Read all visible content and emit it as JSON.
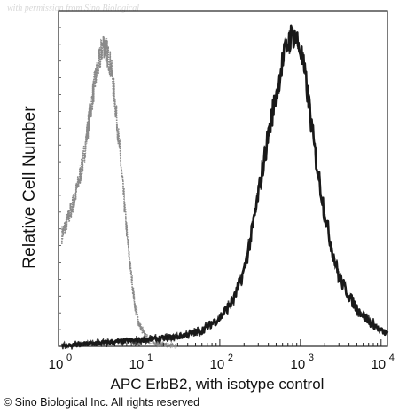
{
  "watermark": "with permission from Sino Biological",
  "copyright": "© Sino Biological Inc. All rights reserved",
  "chart_data": {
    "type": "area",
    "title": "",
    "xlabel": "APC ErbB2, with isotype control",
    "ylabel": "Relative Cell Number",
    "xscale": "log",
    "xlim": [
      1,
      12000
    ],
    "ylim": [
      0,
      1
    ],
    "grid": false,
    "legend": "none",
    "x_ticks": [
      {
        "value": 1,
        "base": "10",
        "exp": "0"
      },
      {
        "value": 10,
        "base": "10",
        "exp": "1"
      },
      {
        "value": 100,
        "base": "10",
        "exp": "2"
      },
      {
        "value": 1000,
        "base": "10",
        "exp": "3"
      },
      {
        "value": 10000,
        "base": "10",
        "exp": "4"
      }
    ],
    "series": [
      {
        "role": "isotype-control",
        "color": "#8a8a8a",
        "x": [
          1.1,
          1.3,
          1.6,
          2.0,
          2.4,
          2.8,
          3.2,
          3.6,
          4.0,
          4.5,
          5.0,
          5.6,
          6.3,
          7.1,
          8.0,
          9.0,
          10,
          11.5,
          13,
          16,
          20,
          30
        ],
        "y": [
          0.35,
          0.4,
          0.47,
          0.58,
          0.72,
          0.83,
          0.9,
          0.96,
          0.93,
          0.88,
          0.78,
          0.65,
          0.5,
          0.35,
          0.22,
          0.12,
          0.07,
          0.04,
          0.02,
          0.01,
          0.005,
          0.0
        ]
      },
      {
        "role": "ErbB2",
        "color": "#1a1a1a",
        "x": [
          1.1,
          3,
          10,
          30,
          60,
          100,
          150,
          200,
          250,
          300,
          350,
          400,
          500,
          600,
          700,
          800,
          900,
          1000,
          1200,
          1500,
          2000,
          2500,
          3000,
          4000,
          5000,
          7000,
          10000,
          12000
        ],
        "y": [
          0.0,
          0.01,
          0.02,
          0.03,
          0.05,
          0.09,
          0.15,
          0.24,
          0.36,
          0.48,
          0.58,
          0.67,
          0.8,
          0.9,
          0.96,
          0.99,
          0.97,
          0.94,
          0.82,
          0.62,
          0.42,
          0.3,
          0.22,
          0.16,
          0.12,
          0.08,
          0.05,
          0.04
        ]
      }
    ]
  }
}
